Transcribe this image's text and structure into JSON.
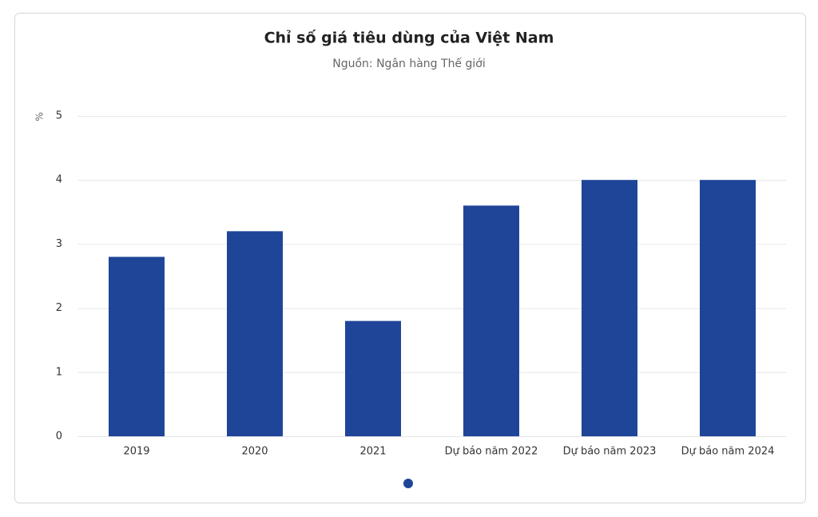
{
  "chart_data": {
    "type": "bar",
    "title": "Chỉ số giá tiêu dùng của Việt Nam",
    "subtitle": "Nguồn: Ngân hàng Thế giới",
    "y_label": "%",
    "categories": [
      "2019",
      "2020",
      "2021",
      "Dự báo năm 2022",
      "Dự báo năm 2023",
      "Dự báo năm 2024"
    ],
    "values": [
      2.8,
      3.2,
      1.8,
      3.6,
      4,
      4
    ],
    "color": "#1f4599",
    "ylim": [
      0,
      5
    ],
    "yticks": [
      0,
      1,
      2,
      3,
      4,
      5
    ],
    "grid": true
  }
}
